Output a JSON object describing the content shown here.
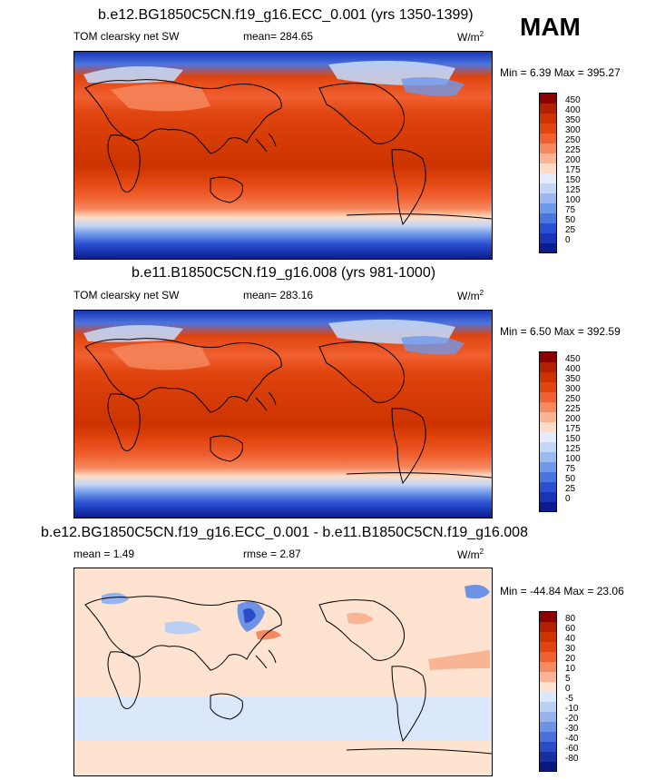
{
  "season": "MAM",
  "panels": [
    {
      "title": "b.e12.BG1850C5CN.f19_g16.ECC_0.001 (yrs 1350-1399)",
      "left_label": "TOM clearsky net SW",
      "mid_label": "mean= 284.65",
      "units": "W/m",
      "units_sup": "2",
      "minmax": "Min =   6.39 Max = 395.27",
      "colorbar": {
        "labels": [
          "450",
          "400",
          "350",
          "300",
          "250",
          "225",
          "200",
          "175",
          "150",
          "125",
          "100",
          "75",
          "50",
          "25",
          "0"
        ],
        "colors": [
          "#8b0000",
          "#b22000",
          "#cc3300",
          "#e0440f",
          "#f06030",
          "#f58a60",
          "#f9b493",
          "#fcdcc6",
          "#e6ecfb",
          "#c3d6f5",
          "#9cb9ef",
          "#7098e8",
          "#4a74de",
          "#2a4fd2",
          "#1a34b8",
          "#0b1c8e"
        ]
      }
    },
    {
      "title": "b.e11.B1850C5CN.f19_g16.008 (yrs 981-1000)",
      "left_label": "TOM clearsky net SW",
      "mid_label": "mean= 283.16",
      "units": "W/m",
      "units_sup": "2",
      "minmax": "Min =   6.50 Max = 392.59",
      "colorbar": {
        "labels": [
          "450",
          "400",
          "350",
          "300",
          "250",
          "225",
          "200",
          "175",
          "150",
          "125",
          "100",
          "75",
          "50",
          "25",
          "0"
        ],
        "colors": [
          "#8b0000",
          "#b22000",
          "#cc3300",
          "#e0440f",
          "#f06030",
          "#f58a60",
          "#f9b493",
          "#fcdcc6",
          "#e6ecfb",
          "#c3d6f5",
          "#9cb9ef",
          "#7098e8",
          "#4a74de",
          "#2a4fd2",
          "#1a34b8",
          "#0b1c8e"
        ]
      }
    },
    {
      "title": "b.e12.BG1850C5CN.f19_g16.ECC_0.001 - b.e11.B1850C5CN.f19_g16.008",
      "left_label": "mean =   1.49",
      "mid_label": "rmse =   2.87",
      "units": "W/m",
      "units_sup": "2",
      "minmax": "Min = -44.84 Max =  23.06",
      "colorbar": {
        "labels": [
          "80",
          "60",
          "40",
          "30",
          "20",
          "10",
          "5",
          "0",
          "-5",
          "-10",
          "-20",
          "-30",
          "-40",
          "-60",
          "-80"
        ],
        "colors": [
          "#8b0000",
          "#b22000",
          "#cc3300",
          "#e0440f",
          "#f06030",
          "#f58a60",
          "#f9b493",
          "#fde3d0",
          "#dbe8fb",
          "#b9cff3",
          "#95b3ec",
          "#6e93e4",
          "#4a70da",
          "#2a4cc9",
          "#16309f",
          "#0a1a7c"
        ]
      }
    }
  ],
  "chart_data": [
    {
      "type": "heatmap",
      "title": "b.e12.BG1850C5CN.f19_g16.ECC_0.001 (yrs 1350-1399)",
      "variable": "TOM clearsky net SW",
      "units": "W/m2",
      "mean": 284.65,
      "min": 6.39,
      "max": 395.27,
      "contour_levels": [
        0,
        25,
        50,
        75,
        100,
        125,
        150,
        175,
        200,
        225,
        250,
        300,
        350,
        400,
        450
      ],
      "zonal_pattern": {
        "lat": [
          90,
          75,
          60,
          45,
          30,
          15,
          0,
          -15,
          -30,
          -45,
          -60,
          -75,
          -90
        ],
        "value": [
          20,
          70,
          160,
          240,
          310,
          360,
          370,
          365,
          330,
          260,
          180,
          60,
          10
        ]
      }
    },
    {
      "type": "heatmap",
      "title": "b.e11.B1850C5CN.f19_g16.008 (yrs 981-1000)",
      "variable": "TOM clearsky net SW",
      "units": "W/m2",
      "mean": 283.16,
      "min": 6.5,
      "max": 392.59,
      "contour_levels": [
        0,
        25,
        50,
        75,
        100,
        125,
        150,
        175,
        200,
        225,
        250,
        300,
        350,
        400,
        450
      ],
      "zonal_pattern": {
        "lat": [
          90,
          75,
          60,
          45,
          30,
          15,
          0,
          -15,
          -30,
          -45,
          -60,
          -75,
          -90
        ],
        "value": [
          20,
          70,
          160,
          240,
          310,
          360,
          370,
          365,
          330,
          260,
          180,
          60,
          10
        ]
      }
    },
    {
      "type": "heatmap",
      "title": "b.e12.BG1850C5CN.f19_g16.ECC_0.001 - b.e11.B1850C5CN.f19_g16.008",
      "units": "W/m2",
      "mean": 1.49,
      "rmse": 2.87,
      "min": -44.84,
      "max": 23.06,
      "contour_levels": [
        -80,
        -60,
        -40,
        -30,
        -20,
        -10,
        -5,
        0,
        5,
        10,
        20,
        30,
        40,
        60,
        80
      ],
      "zonal_pattern": {
        "lat": [
          90,
          60,
          30,
          0,
          -30,
          -45,
          -60,
          -75,
          -90
        ],
        "value": [
          2,
          2,
          2,
          2,
          2,
          -3,
          -3,
          2,
          2
        ]
      }
    }
  ]
}
